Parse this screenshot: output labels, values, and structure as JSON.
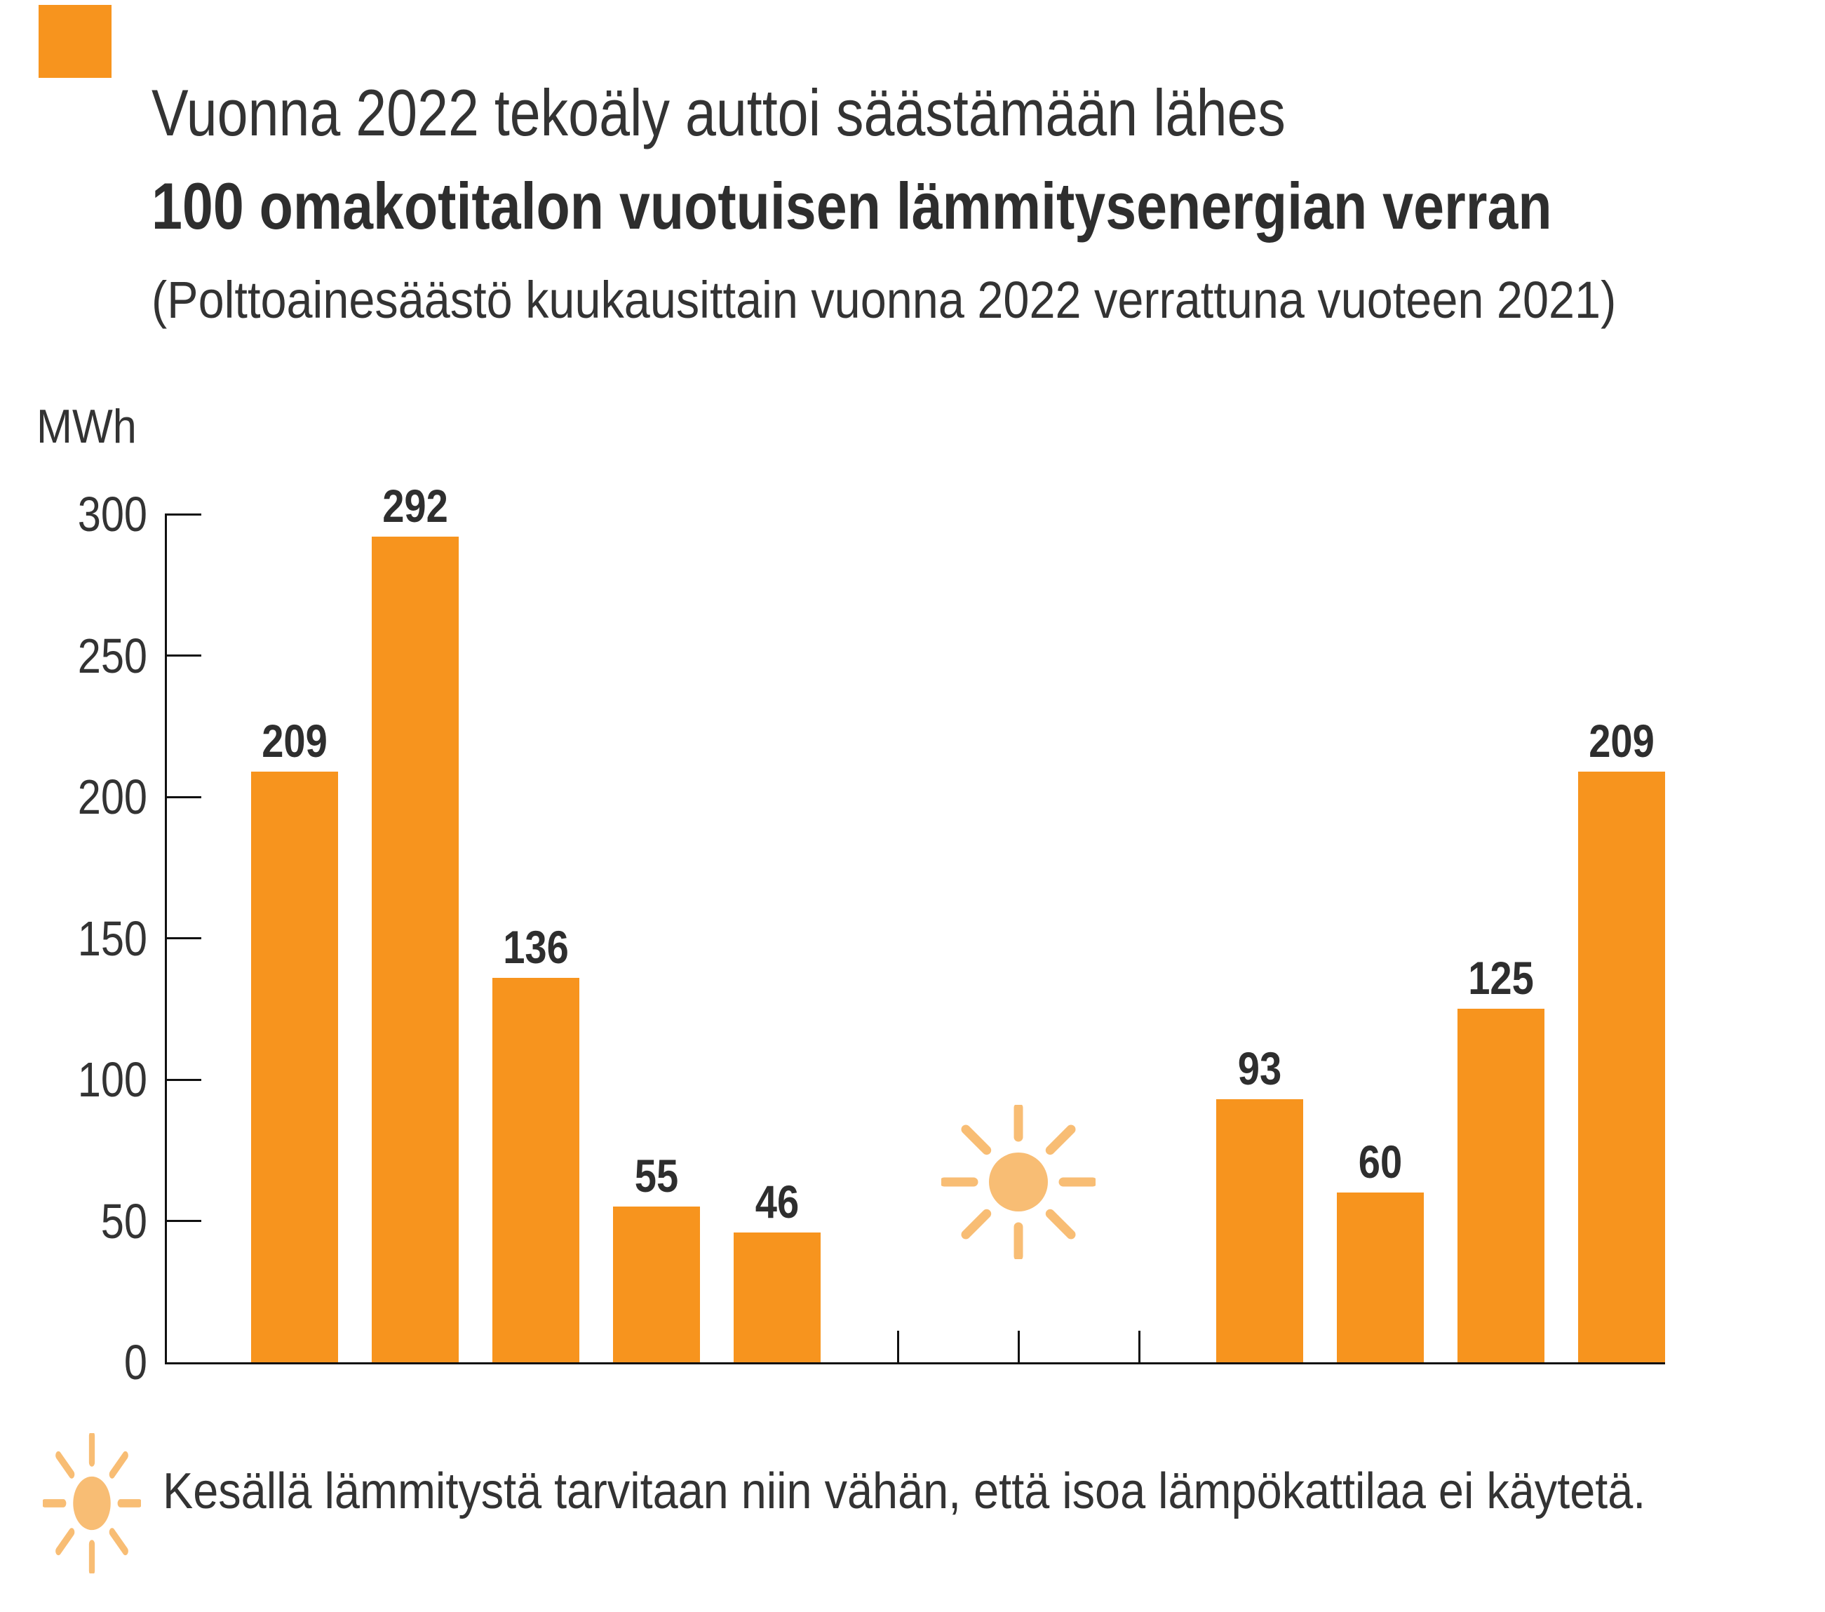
{
  "brand": {
    "corner_square_color": "#F7941E"
  },
  "header": {
    "title_regular": "Vuonna 2022 tekoäly auttoi säästämään lähes",
    "title_bold": "100 omakotitalon vuotuisen lämmitysenergian verran",
    "subtitle": "(Polttoainesäästö kuukausittain vuonna 2022 verrattuna vuoteen 2021)"
  },
  "chart_data": {
    "type": "bar",
    "title": "Vuonna 2022 tekoäly auttoi säästämään lähes 100 omakotitalon vuotuisen lämmitysenergian verran",
    "subtitle": "(Polttoainesäästö kuukausittain vuonna 2022 verrattuna vuoteen 2021)",
    "ylabel": "MWh",
    "xlabel": "",
    "ylim": [
      0,
      300
    ],
    "y_ticks": [
      0,
      50,
      100,
      150,
      200,
      250,
      300
    ],
    "values": [
      209,
      292,
      136,
      55,
      46,
      null,
      null,
      null,
      93,
      60,
      125,
      209
    ],
    "bar_color": "#F7941E",
    "grid": false,
    "legend": false
  },
  "footer": {
    "note": "Kesällä lämmitystä tarvitaan niin vähän, että isoa lämpökattilaa ei käytetä."
  },
  "colors": {
    "bar_orange": "#F7941E",
    "sun_orange": "#F8BD74",
    "text_dark": "#333333",
    "axis_black": "#111111",
    "background": "#FFFFFF"
  }
}
